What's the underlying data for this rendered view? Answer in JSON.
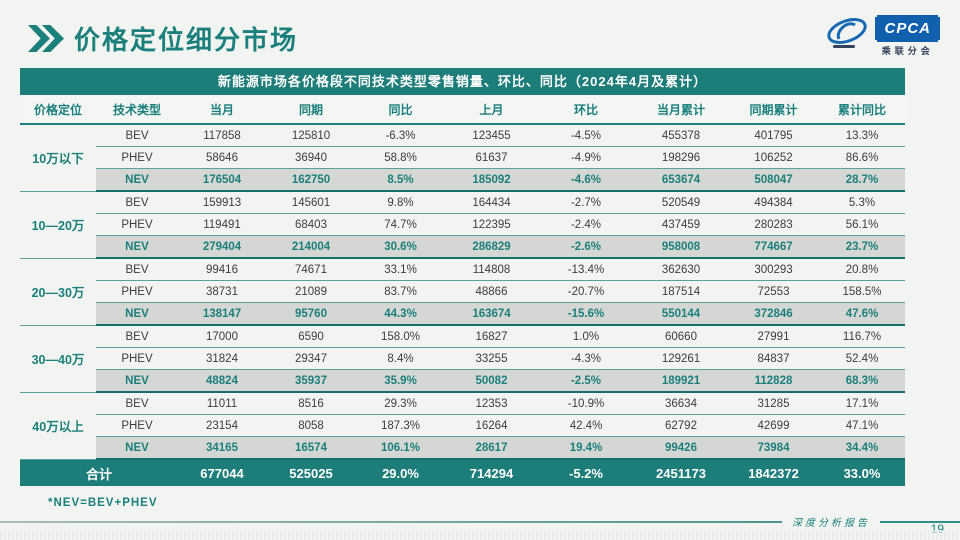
{
  "page": {
    "title": "价格定位细分市场",
    "footnote": "*NEV=BEV+PHEV",
    "footer_label": "深度分析报告",
    "page_number": "19"
  },
  "logo": {
    "text": "CPCA",
    "subtext": "乘联分会"
  },
  "colors": {
    "accent_teal": "#1b7f7c",
    "banner_bg": "#1c7d79",
    "nev_row_bg": "#d5d7d4",
    "logo_blue": "#1060ae"
  },
  "table": {
    "banner": "新能源市场各价格段不同技术类型零售销量、环比、同比（2024年4月及累计）",
    "columns": [
      "价格定位",
      "技术类型",
      "当月",
      "同期",
      "同比",
      "上月",
      "环比",
      "当月累计",
      "同期累计",
      "累计同比"
    ],
    "groups": [
      {
        "label": "10万以下",
        "rows": [
          {
            "type": "BEV",
            "cells": [
              "117858",
              "125810",
              "-6.3%",
              "123455",
              "-4.5%",
              "455378",
              "401795",
              "13.3%"
            ]
          },
          {
            "type": "PHEV",
            "cells": [
              "58646",
              "36940",
              "58.8%",
              "61637",
              "-4.9%",
              "198296",
              "106252",
              "86.6%"
            ]
          },
          {
            "type": "NEV",
            "cells": [
              "176504",
              "162750",
              "8.5%",
              "185092",
              "-4.6%",
              "653674",
              "508047",
              "28.7%"
            ]
          }
        ]
      },
      {
        "label": "10—20万",
        "rows": [
          {
            "type": "BEV",
            "cells": [
              "159913",
              "145601",
              "9.8%",
              "164434",
              "-2.7%",
              "520549",
              "494384",
              "5.3%"
            ]
          },
          {
            "type": "PHEV",
            "cells": [
              "119491",
              "68403",
              "74.7%",
              "122395",
              "-2.4%",
              "437459",
              "280283",
              "56.1%"
            ]
          },
          {
            "type": "NEV",
            "cells": [
              "279404",
              "214004",
              "30.6%",
              "286829",
              "-2.6%",
              "958008",
              "774667",
              "23.7%"
            ]
          }
        ]
      },
      {
        "label": "20—30万",
        "rows": [
          {
            "type": "BEV",
            "cells": [
              "99416",
              "74671",
              "33.1%",
              "114808",
              "-13.4%",
              "362630",
              "300293",
              "20.8%"
            ]
          },
          {
            "type": "PHEV",
            "cells": [
              "38731",
              "21089",
              "83.7%",
              "48866",
              "-20.7%",
              "187514",
              "72553",
              "158.5%"
            ]
          },
          {
            "type": "NEV",
            "cells": [
              "138147",
              "95760",
              "44.3%",
              "163674",
              "-15.6%",
              "550144",
              "372846",
              "47.6%"
            ]
          }
        ]
      },
      {
        "label": "30—40万",
        "rows": [
          {
            "type": "BEV",
            "cells": [
              "17000",
              "6590",
              "158.0%",
              "16827",
              "1.0%",
              "60660",
              "27991",
              "116.7%"
            ]
          },
          {
            "type": "PHEV",
            "cells": [
              "31824",
              "29347",
              "8.4%",
              "33255",
              "-4.3%",
              "129261",
              "84837",
              "52.4%"
            ]
          },
          {
            "type": "NEV",
            "cells": [
              "48824",
              "35937",
              "35.9%",
              "50082",
              "-2.5%",
              "189921",
              "112828",
              "68.3%"
            ]
          }
        ]
      },
      {
        "label": "40万以上",
        "rows": [
          {
            "type": "BEV",
            "cells": [
              "11011",
              "8516",
              "29.3%",
              "12353",
              "-10.9%",
              "36634",
              "31285",
              "17.1%"
            ]
          },
          {
            "type": "PHEV",
            "cells": [
              "23154",
              "8058",
              "187.3%",
              "16264",
              "42.4%",
              "62792",
              "42699",
              "47.1%"
            ]
          },
          {
            "type": "NEV",
            "cells": [
              "34165",
              "16574",
              "106.1%",
              "28617",
              "19.4%",
              "99426",
              "73984",
              "34.4%"
            ]
          }
        ]
      }
    ],
    "total": {
      "label": "合计",
      "cells": [
        "677044",
        "525025",
        "29.0%",
        "714294",
        "-5.2%",
        "2451173",
        "1842372",
        "33.0%"
      ]
    }
  }
}
